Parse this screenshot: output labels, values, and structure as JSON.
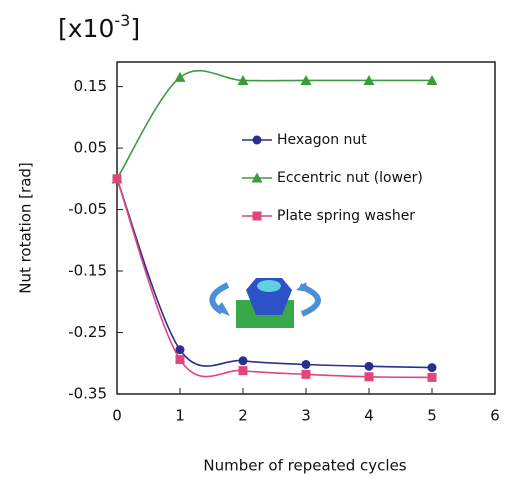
{
  "chart_data": {
    "type": "line",
    "y_multiplier": "[x10",
    "y_multiplier_exponent": "-3",
    "y_multiplier_close": "]",
    "x_label": "Number of repeated cycles",
    "y_label": "Nut rotation [rad]",
    "x": [
      0,
      1,
      2,
      3,
      4,
      5
    ],
    "series": [
      {
        "name": "Hexagon nut",
        "color": "#2a2f8f",
        "marker": "circle",
        "values": [
          0,
          -0.278,
          -0.296,
          -0.302,
          -0.305,
          -0.307
        ]
      },
      {
        "name": "Eccentric nut (lower)",
        "color": "#3c9c3c",
        "marker": "triangle",
        "values": [
          0,
          0.165,
          0.16,
          0.16,
          0.16,
          0.16
        ]
      },
      {
        "name": "Plate spring washer",
        "color": "#e2457c",
        "marker": "square",
        "values": [
          0,
          -0.294,
          -0.312,
          -0.318,
          -0.322,
          -0.323
        ]
      }
    ],
    "xlim": [
      0,
      6
    ],
    "xticks": [
      0,
      1,
      2,
      3,
      4,
      5,
      6
    ],
    "ylim": [
      -0.35,
      0.19
    ],
    "yticks": [
      -0.35,
      -0.25,
      -0.15,
      -0.05,
      0.05,
      0.15
    ]
  }
}
